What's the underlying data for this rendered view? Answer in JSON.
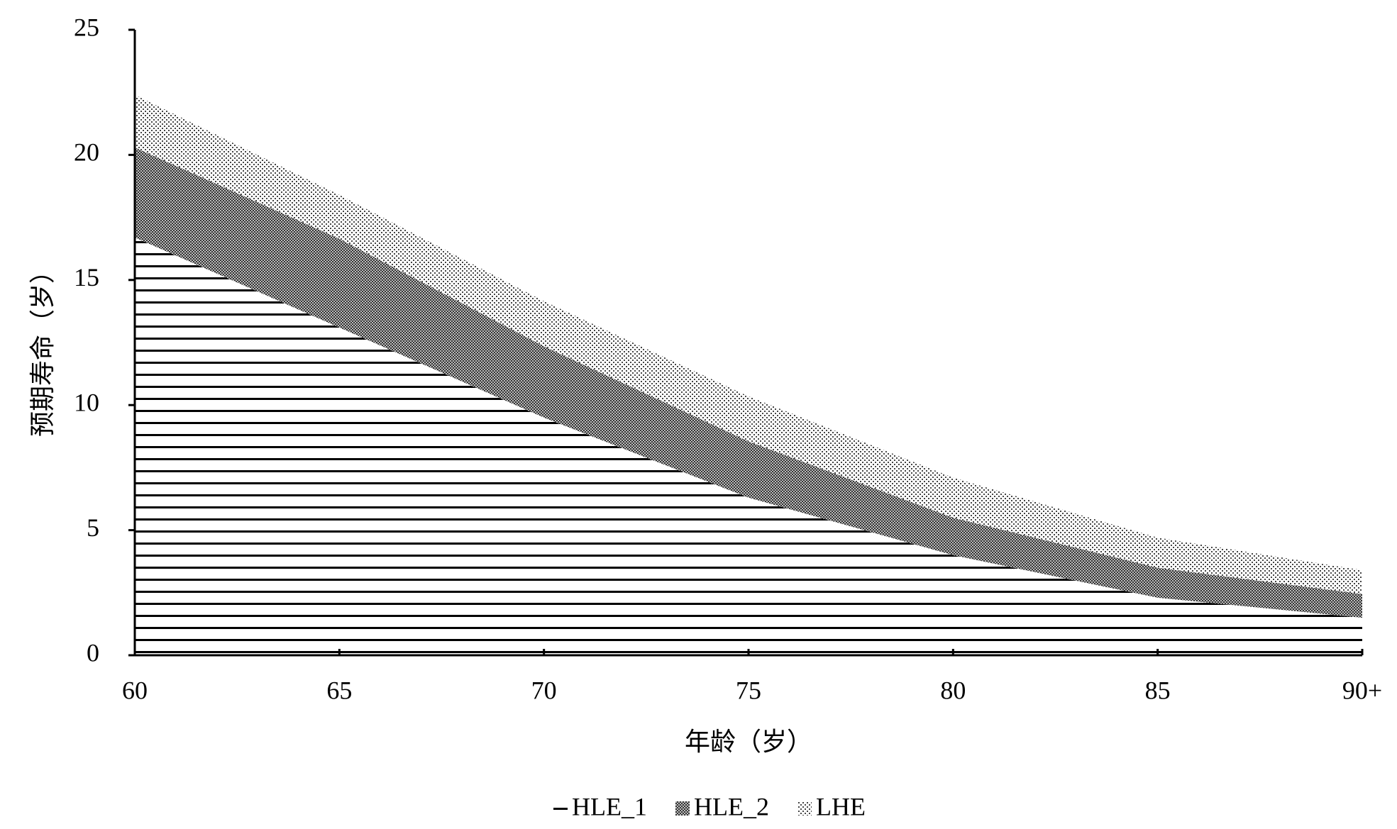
{
  "chart_data": {
    "type": "stacked-area",
    "x_label": "年龄（岁）",
    "y_label": "预期寿命（岁）",
    "categories": [
      "60",
      "65",
      "70",
      "75",
      "80",
      "85",
      "90+"
    ],
    "series": [
      {
        "name": "HLE_1",
        "color": "#000000",
        "pattern": "lines",
        "values": [
          16.7,
          13.1,
          9.5,
          6.3,
          4.0,
          2.3,
          1.5
        ]
      },
      {
        "name": "HLE_2",
        "color": "#000000",
        "pattern": "crosshatch",
        "values": [
          3.6,
          3.55,
          2.85,
          2.25,
          1.5,
          1.2,
          0.95
        ]
      },
      {
        "name": "LHE",
        "color": "#000000",
        "pattern": "dots",
        "values": [
          2.1,
          1.75,
          1.8,
          1.8,
          1.6,
          1.2,
          0.95
        ]
      }
    ],
    "ylim": [
      0,
      25
    ],
    "yticks": [
      0,
      5,
      10,
      15,
      20,
      25
    ],
    "grid": false,
    "legend": "bottom"
  }
}
